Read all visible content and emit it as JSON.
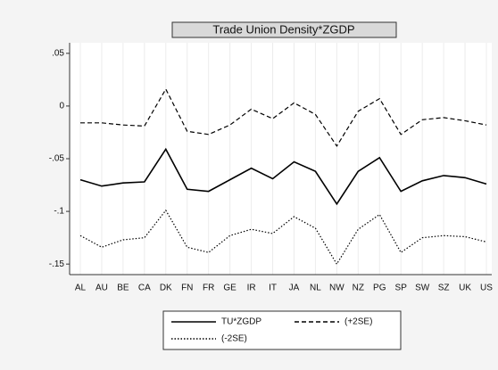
{
  "chart_data": {
    "type": "line",
    "title": "Trade Union Density*ZGDP",
    "categories": [
      "AL",
      "AU",
      "BE",
      "CA",
      "DK",
      "FN",
      "FR",
      "GE",
      "IR",
      "IT",
      "JA",
      "NL",
      "NW",
      "NZ",
      "PG",
      "SP",
      "SW",
      "SZ",
      "UK",
      "US"
    ],
    "series": [
      {
        "name": "TU*ZGDP",
        "color": "#000000",
        "dash": "solid",
        "values": [
          -0.07,
          -0.076,
          -0.073,
          -0.072,
          -0.041,
          -0.079,
          -0.081,
          -0.07,
          -0.059,
          -0.069,
          -0.053,
          -0.062,
          -0.093,
          -0.062,
          -0.049,
          -0.081,
          -0.071,
          -0.066,
          -0.068,
          -0.074
        ]
      },
      {
        "name": "(+2SE)",
        "color": "#000000",
        "dash": "dashed",
        "values": [
          -0.016,
          -0.016,
          -0.018,
          -0.019,
          0.016,
          -0.024,
          -0.027,
          -0.018,
          -0.003,
          -0.012,
          0.003,
          -0.008,
          -0.038,
          -0.005,
          0.007,
          -0.027,
          -0.013,
          -0.011,
          -0.014,
          -0.018
        ]
      },
      {
        "name": "(-2SE)",
        "color": "#000000",
        "dash": "dotted",
        "values": [
          -0.123,
          -0.134,
          -0.127,
          -0.125,
          -0.099,
          -0.134,
          -0.139,
          -0.123,
          -0.117,
          -0.121,
          -0.105,
          -0.116,
          -0.15,
          -0.117,
          -0.103,
          -0.139,
          -0.125,
          -0.123,
          -0.124,
          -0.129
        ]
      }
    ],
    "ylim": [
      -0.16,
      0.06
    ],
    "yticks": [
      {
        "value": 0.05,
        "label": ".05"
      },
      0,
      {
        "value": -0.05,
        "label": "-.05"
      },
      {
        "value": -0.1,
        "label": "-.1"
      },
      {
        "value": -0.15,
        "label": "-.15"
      }
    ],
    "xgrid": true
  }
}
